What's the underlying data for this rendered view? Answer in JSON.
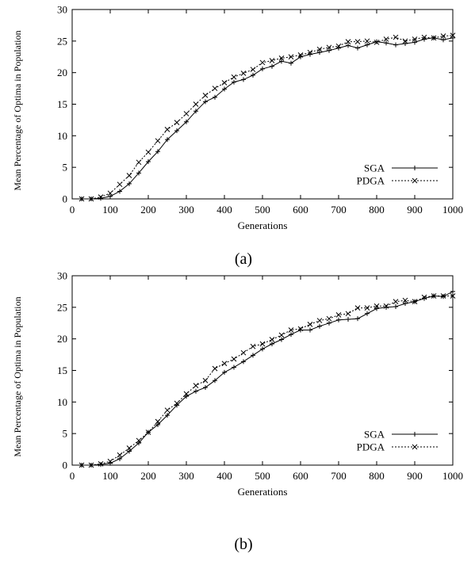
{
  "chart_data": [
    {
      "type": "line",
      "caption": "(a)",
      "xlabel": "Generations",
      "ylabel": "Mean Percentage of Optima in Population",
      "xlim": [
        0,
        1000
      ],
      "ylim": [
        0,
        30
      ],
      "xticks": [
        0,
        100,
        200,
        300,
        400,
        500,
        600,
        700,
        800,
        900,
        1000
      ],
      "yticks": [
        0,
        5,
        10,
        15,
        20,
        25,
        30
      ],
      "legend_position": "bottom-right",
      "series": [
        {
          "name": "SGA",
          "marker": "+",
          "dash": "solid",
          "x": [
            25,
            50,
            75,
            100,
            125,
            150,
            175,
            200,
            225,
            250,
            275,
            300,
            325,
            350,
            375,
            400,
            425,
            450,
            475,
            500,
            525,
            550,
            575,
            600,
            625,
            650,
            675,
            700,
            725,
            750,
            775,
            800,
            825,
            850,
            875,
            900,
            925,
            950,
            975,
            1000
          ],
          "y": [
            0,
            0,
            0.1,
            0.4,
            1.2,
            2.4,
            4.1,
            5.9,
            7.5,
            9.4,
            10.8,
            12.2,
            13.9,
            15.4,
            16.1,
            17.4,
            18.5,
            18.9,
            19.6,
            20.6,
            21.0,
            21.8,
            21.5,
            22.5,
            22.9,
            23.2,
            23.5,
            23.9,
            24.3,
            23.9,
            24.4,
            24.9,
            24.7,
            24.4,
            24.6,
            24.8,
            25.3,
            25.5,
            25.2,
            25.5
          ]
        },
        {
          "name": "PDGA",
          "marker": "x",
          "dash": "dashed",
          "x": [
            25,
            50,
            75,
            100,
            125,
            150,
            175,
            200,
            225,
            250,
            275,
            300,
            325,
            350,
            375,
            400,
            425,
            450,
            475,
            500,
            525,
            550,
            575,
            600,
            625,
            650,
            675,
            700,
            725,
            750,
            775,
            800,
            825,
            850,
            875,
            900,
            925,
            950,
            975,
            1000
          ],
          "y": [
            0,
            0,
            0.3,
            0.9,
            2.3,
            3.7,
            5.8,
            7.4,
            9.2,
            11.0,
            12.1,
            13.5,
            15.0,
            16.4,
            17.5,
            18.4,
            19.3,
            19.9,
            20.5,
            21.6,
            21.9,
            22.3,
            22.5,
            22.8,
            23.2,
            23.7,
            24.0,
            24.2,
            24.9,
            24.9,
            25.0,
            24.8,
            25.3,
            25.6,
            25.0,
            25.3,
            25.6,
            25.5,
            25.8,
            25.9
          ]
        }
      ]
    },
    {
      "type": "line",
      "caption": "(b)",
      "xlabel": "Generations",
      "ylabel": "Mean Percentage of Optima in Population",
      "xlim": [
        0,
        1000
      ],
      "ylim": [
        0,
        30
      ],
      "xticks": [
        0,
        100,
        200,
        300,
        400,
        500,
        600,
        700,
        800,
        900,
        1000
      ],
      "yticks": [
        0,
        5,
        10,
        15,
        20,
        25,
        30
      ],
      "legend_position": "bottom-right",
      "series": [
        {
          "name": "SGA",
          "marker": "+",
          "dash": "solid",
          "x": [
            25,
            50,
            75,
            100,
            125,
            150,
            175,
            200,
            225,
            250,
            275,
            300,
            325,
            350,
            375,
            400,
            425,
            450,
            475,
            500,
            525,
            550,
            575,
            600,
            625,
            650,
            675,
            700,
            725,
            750,
            775,
            800,
            825,
            850,
            875,
            900,
            925,
            950,
            975,
            1000
          ],
          "y": [
            0,
            0,
            0.1,
            0.3,
            1.0,
            2.2,
            3.5,
            5.2,
            6.4,
            7.9,
            9.5,
            10.9,
            11.7,
            12.3,
            13.4,
            14.7,
            15.5,
            16.4,
            17.4,
            18.4,
            19.2,
            19.9,
            20.7,
            21.4,
            21.4,
            22.0,
            22.5,
            23.0,
            23.1,
            23.2,
            24.0,
            24.8,
            25.0,
            25.1,
            25.6,
            25.9,
            26.4,
            26.8,
            26.7,
            27.5
          ]
        },
        {
          "name": "PDGA",
          "marker": "x",
          "dash": "dashed",
          "x": [
            25,
            50,
            75,
            100,
            125,
            150,
            175,
            200,
            225,
            250,
            275,
            300,
            325,
            350,
            375,
            400,
            425,
            450,
            475,
            500,
            525,
            550,
            575,
            600,
            625,
            650,
            675,
            700,
            725,
            750,
            775,
            800,
            825,
            850,
            875,
            900,
            925,
            950,
            975,
            1000
          ],
          "y": [
            0,
            0,
            0.2,
            0.6,
            1.6,
            2.7,
            3.9,
            5.2,
            6.9,
            8.7,
            9.8,
            11.3,
            12.6,
            13.4,
            15.3,
            16.1,
            16.8,
            17.8,
            18.8,
            19.2,
            19.9,
            20.6,
            21.4,
            21.6,
            22.3,
            22.9,
            23.2,
            23.8,
            24.0,
            24.9,
            24.9,
            25.2,
            25.2,
            25.9,
            26.1,
            25.9,
            26.6,
            26.8,
            26.8,
            26.8
          ]
        }
      ]
    }
  ]
}
